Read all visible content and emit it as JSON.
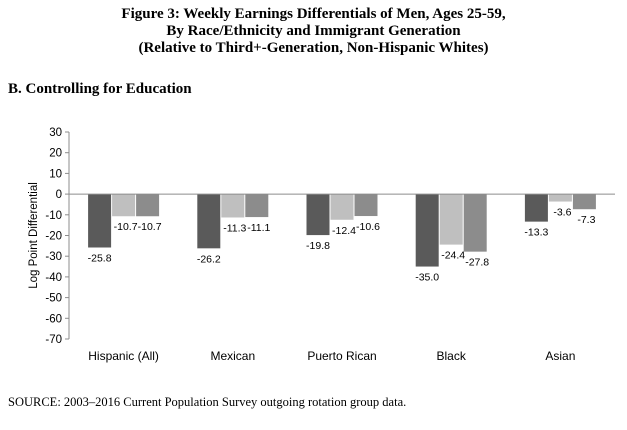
{
  "header": {
    "title_line1": "Figure 3: Weekly Earnings Differentials of Men, Ages 25-59,",
    "title_line2": "By Race/Ethnicity and Immigrant Generation",
    "title_line3": "(Relative to Third+-Generation, Non-Hispanic Whites)",
    "panel_title": "B. Controlling for Education"
  },
  "footer": {
    "source": "SOURCE: 2003–2016 Current Population Survey outgoing rotation group data."
  },
  "colors": {
    "series": [
      "#5a5a5a",
      "#bfbfbf",
      "#8c8c8c"
    ],
    "axis": "#8c8c8c"
  },
  "chart_data": {
    "type": "bar",
    "ylabel": "Log Point Differential",
    "xlabel": "",
    "ylim": [
      -70,
      30
    ],
    "yticks": [
      30,
      20,
      10,
      0,
      -10,
      -20,
      -30,
      -40,
      -50,
      -60,
      -70
    ],
    "grid": false,
    "legend": "none",
    "categories": [
      "Hispanic (All)",
      "Mexican",
      "Puerto Rican",
      "Black",
      "Asian"
    ],
    "series": [
      {
        "values": [
          -25.8,
          -26.2,
          -19.8,
          -35.0,
          -13.3
        ],
        "labels": [
          "-25.8",
          "-26.2",
          "-19.8",
          "-35.0",
          "-13.3"
        ]
      },
      {
        "values": [
          -10.7,
          -11.3,
          -12.4,
          -24.4,
          -3.6
        ],
        "labels": [
          "-10.7",
          "-11.3",
          "-12.4",
          "-24.4",
          "-3.6"
        ]
      },
      {
        "values": [
          -10.7,
          -11.1,
          -10.6,
          -27.8,
          -7.3
        ],
        "labels": [
          "-10.7",
          "-11.1",
          "-10.6",
          "-27.8",
          "-7.3"
        ]
      }
    ]
  }
}
